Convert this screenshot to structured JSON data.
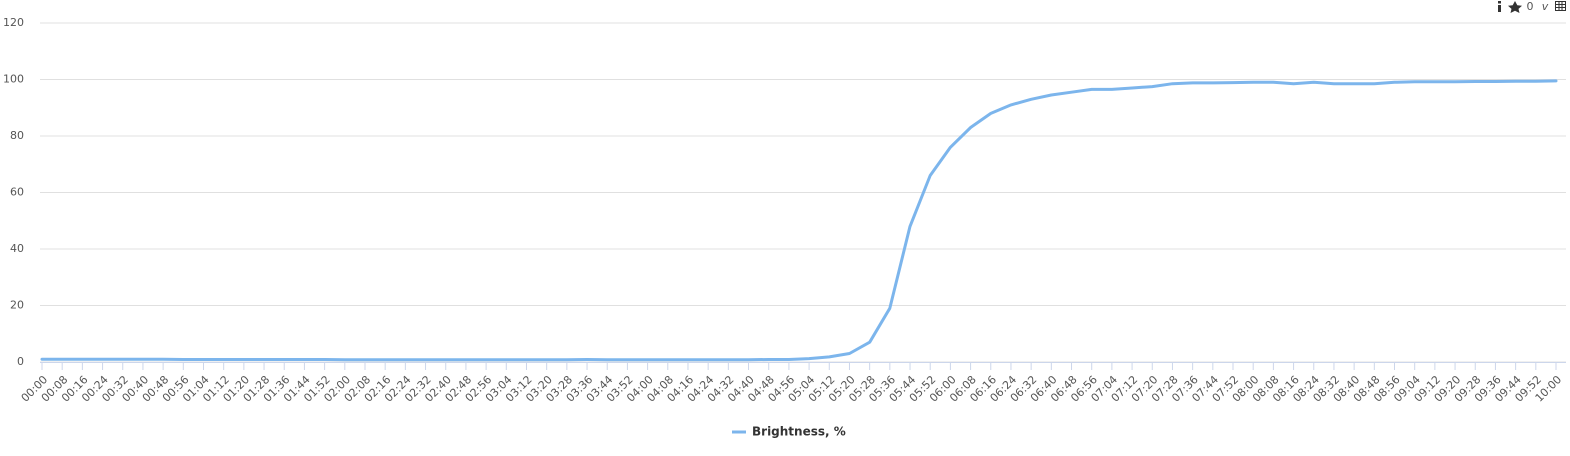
{
  "chart_data": {
    "type": "line",
    "categories": [
      "00:00",
      "00:08",
      "00:16",
      "00:24",
      "00:32",
      "00:40",
      "00:48",
      "00:56",
      "01:04",
      "01:12",
      "01:20",
      "01:28",
      "01:36",
      "01:44",
      "01:52",
      "02:00",
      "02:08",
      "02:16",
      "02:24",
      "02:32",
      "02:40",
      "02:48",
      "02:56",
      "03:04",
      "03:12",
      "03:20",
      "03:28",
      "03:36",
      "03:44",
      "03:52",
      "04:00",
      "04:08",
      "04:16",
      "04:24",
      "04:32",
      "04:40",
      "04:48",
      "04:56",
      "05:04",
      "05:12",
      "05:20",
      "05:28",
      "05:36",
      "05:44",
      "05:52",
      "06:00",
      "06:08",
      "06:16",
      "06:24",
      "06:32",
      "06:40",
      "06:48",
      "06:56",
      "07:04",
      "07:12",
      "07:20",
      "07:28",
      "07:36",
      "07:44",
      "07:52",
      "08:00",
      "08:08",
      "08:16",
      "08:24",
      "08:32",
      "08:40",
      "08:48",
      "08:56",
      "09:04",
      "09:12",
      "09:20",
      "09:28",
      "09:36",
      "09:44",
      "09:52",
      "10:00"
    ],
    "series": [
      {
        "name": "Brightness, %",
        "color": "#7cb5ec",
        "values": [
          1,
          1,
          1,
          1,
          1,
          1,
          1,
          0.9,
          0.9,
          0.9,
          0.9,
          0.9,
          0.9,
          0.9,
          0.9,
          0.8,
          0.8,
          0.8,
          0.8,
          0.8,
          0.8,
          0.8,
          0.8,
          0.8,
          0.8,
          0.8,
          0.8,
          0.9,
          0.8,
          0.8,
          0.8,
          0.8,
          0.8,
          0.8,
          0.8,
          0.8,
          0.9,
          0.9,
          1.2,
          1.8,
          3,
          7,
          19,
          48,
          66,
          76,
          83,
          88,
          91,
          93,
          94.5,
          95.5,
          96.5,
          96.5,
          97,
          97.5,
          98.5,
          98.8,
          98.8,
          98.9,
          99,
          99,
          98.5,
          99,
          98.5,
          98.5,
          98.5,
          99,
          99.2,
          99.2,
          99.2,
          99.3,
          99.3,
          99.4,
          99.4,
          99.5
        ]
      }
    ],
    "ylim": [
      0,
      120
    ],
    "yticks": [
      0,
      20,
      40,
      60,
      80,
      100,
      120
    ],
    "grid": true,
    "legend": "bottom"
  },
  "toolbar": {
    "count": "0",
    "label": "v"
  }
}
